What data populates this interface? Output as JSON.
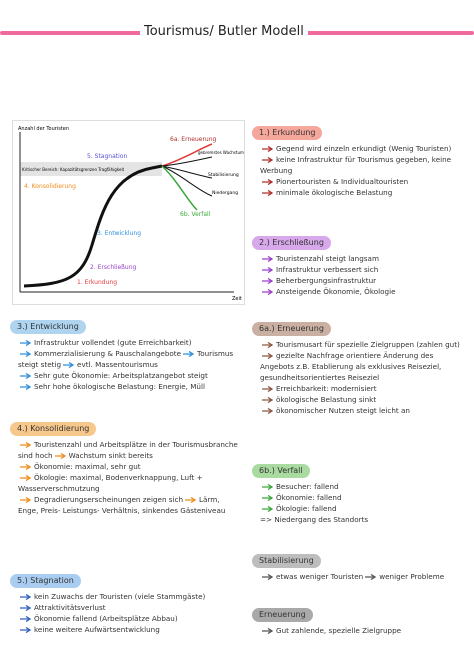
{
  "header": {
    "title": "Tourismus/ Butler Modell"
  },
  "diagram": {
    "y_axis": "Anzahl der Touristen",
    "x_axis": "Zeit",
    "capacity": "Kritischer Bereich: Kapazitätsgrenzen Tragfähigkeit",
    "stages": [
      "1. Erkundung",
      "2. Erschließung",
      "3. Entwicklung",
      "4. Konsolidierung",
      "5. Stagnation",
      "6a. Erneuerung",
      "6b. Verfall"
    ],
    "branches": [
      "gebremstes Wachstum",
      "Stabilisierung",
      "Niedergang"
    ]
  },
  "sections": [
    {
      "title": "1.) Erkundung",
      "items": [
        [
          "Gegend wird einzeln erkundigt (Wenig Touristen)"
        ],
        [
          "keine Infrastruktur für Tourismus gegeben, keine Werbung"
        ],
        [
          "Pionertouristen & Individualtouristen"
        ],
        [
          "minimale ökologische Belastung"
        ]
      ]
    },
    {
      "title": "2.) Erschließung",
      "items": [
        [
          "Touristenzahl steigt langsam"
        ],
        [
          "Infrastruktur verbessert sich"
        ],
        [
          "Beherbergungsinfrastruktur"
        ],
        [
          "Ansteigende Ökonomie, Ökologie"
        ]
      ]
    },
    {
      "title": "3.) Entwicklung",
      "items": [
        [
          "Infrastruktur vollendet (gute Erreichbarkeit)"
        ],
        [
          "Kommerzialisierung & Pauschalangebote",
          "Tourismus steigt stetig",
          "evtl. Massentourismus"
        ],
        [
          "Sehr gute Ökonomie: Arbeitsplatzangebot steigt"
        ],
        [
          "Sehr hohe ökologische Belastung: Energie, Müll"
        ]
      ]
    },
    {
      "title": "4.) Konsolidierung",
      "items": [
        [
          "Touristenzahl und Arbeitsplätze in der Tourismusbranche sind hoch",
          "Wachstum sinkt bereits"
        ],
        [
          "Ökonomie: maximal, sehr gut"
        ],
        [
          "Ökologie: maximal, Bodenverknappung, Luft + Wasserverschmutzung"
        ],
        [
          "Degradierungserscheinungen zeigen sich",
          "Lärm, Enge, Preis- Leistungs- Verhältnis, sinkendes Gästeniveau"
        ]
      ]
    },
    {
      "title": "5.) Stagnation",
      "items": [
        [
          "kein Zuwachs der Touristen (viele Stammgäste)"
        ],
        [
          "Attraktivitätsverlust"
        ],
        [
          "Ökonomie fallend (Arbeitsplätze Abbau)"
        ],
        [
          "keine weitere Aufwärtsentwicklung"
        ]
      ]
    },
    {
      "title": "6a.) Erneuerung",
      "items": [
        [
          "Tourismusart für spezielle Zielgruppen (zahlen gut)"
        ],
        [
          "gezielte Nachfrage orientiere Änderung des Angebots z.B. Etablierung als exklusives Reiseziel, gesundheitsorientiertes Reiseziel"
        ],
        [
          "Erreichbarkeit: modernisiert"
        ],
        [
          "ökologische Belastung sinkt"
        ],
        [
          "ökonomischer Nutzen steigt leicht an"
        ]
      ]
    },
    {
      "title": "6b.) Verfall",
      "items": [
        [
          "Besucher: fallend"
        ],
        [
          "Ökonomie: fallend"
        ],
        [
          "Ökologie: fallend"
        ],
        [
          "=> Niedergang des Standorts"
        ]
      ]
    },
    {
      "title": "Stabilisierung",
      "items": [
        [
          "etwas weniger Touristen",
          "weniger Probleme"
        ]
      ]
    },
    {
      "title": "Erneuerung",
      "items": [
        [
          "Gut zahlende, spezielle Zielgruppe"
        ]
      ]
    }
  ]
}
